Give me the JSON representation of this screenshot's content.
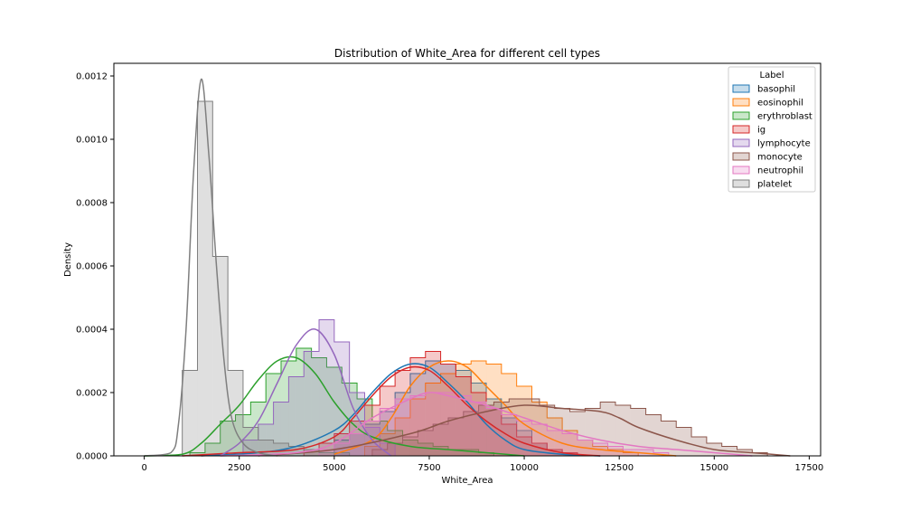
{
  "chart_data": {
    "type": "histogram",
    "title": "Distribution of White_Area for different cell types",
    "xlabel": "White_Area",
    "ylabel": "Density",
    "xlim": [
      -800,
      17800
    ],
    "ylim": [
      0,
      0.00124
    ],
    "x_ticks": [
      0,
      2500,
      5000,
      7500,
      10000,
      12500,
      15000,
      17500
    ],
    "x_tick_labels": [
      "0",
      "2500",
      "5000",
      "7500",
      "10000",
      "12500",
      "15000",
      "17500"
    ],
    "y_ticks": [
      0,
      0.0002,
      0.0004,
      0.0006,
      0.0008,
      0.001,
      0.0012
    ],
    "y_tick_labels": [
      "0.0000",
      "0.0002",
      "0.0004",
      "0.0006",
      "0.0008",
      "0.0010",
      "0.0012"
    ],
    "legend": {
      "title": "Label",
      "location": "upper right"
    },
    "bin_width": 400,
    "series": [
      {
        "name": "basophil",
        "color": "#1f77b4",
        "bins_start": 5000,
        "bin_values": [
          5e-05,
          7e-05,
          0.0001,
          0.00014,
          0.0002,
          0.00026,
          0.0003,
          0.00029,
          0.00027,
          0.00023,
          0.00018,
          0.00012,
          8e-05,
          4e-05,
          2e-05,
          1e-05
        ],
        "kde_x": [
          1500,
          3000,
          4000,
          5000,
          5500,
          6000,
          6500,
          7000,
          7500,
          8000,
          8500,
          9000,
          9500,
          10000,
          11000,
          12000
        ],
        "kde_y": [
          0,
          1e-05,
          3e-05,
          8e-05,
          0.00013,
          0.0002,
          0.00026,
          0.00029,
          0.00028,
          0.00023,
          0.00017,
          0.0001,
          5e-05,
          2e-05,
          5e-06,
          0
        ]
      },
      {
        "name": "eosinophil",
        "color": "#ff7f0e",
        "bins_start": 5800,
        "bin_values": [
          3e-05,
          7e-05,
          0.00012,
          0.00018,
          0.00023,
          0.00026,
          0.00029,
          0.0003,
          0.00029,
          0.00026,
          0.00022,
          0.00017,
          0.00012,
          8e-05,
          5e-05,
          3e-05,
          2e-05,
          1e-05
        ],
        "kde_x": [
          5000,
          6000,
          6500,
          7000,
          7500,
          8000,
          8500,
          9000,
          9500,
          10000,
          11000,
          12000,
          13000,
          14000
        ],
        "kde_y": [
          5e-06,
          5e-05,
          0.00012,
          0.00022,
          0.00028,
          0.0003,
          0.00028,
          0.00022,
          0.00016,
          0.0001,
          4e-05,
          2e-05,
          1e-05,
          0
        ]
      },
      {
        "name": "erythroblast",
        "color": "#2ca02c",
        "bins_start": 1200,
        "bin_values": [
          1e-05,
          4e-05,
          0.00011,
          0.00013,
          0.00017,
          0.00026,
          0.0003,
          0.00034,
          0.00031,
          0.00028,
          0.00023,
          0.00018,
          0.00011,
          8e-05,
          5e-05,
          4e-05,
          3e-05,
          2e-05,
          2e-05,
          1e-05
        ],
        "kde_x": [
          0,
          1000,
          1500,
          2000,
          2500,
          3000,
          3500,
          4000,
          4500,
          5000,
          5500,
          6000,
          7000,
          8000,
          9000,
          10000
        ],
        "kde_y": [
          0,
          5e-06,
          4e-05,
          0.0001,
          0.00016,
          0.00024,
          0.0003,
          0.00031,
          0.00026,
          0.00017,
          0.0001,
          6e-05,
          3e-05,
          2e-05,
          1e-05,
          0
        ]
      },
      {
        "name": "ig",
        "color": "#d62728",
        "bins_start": 4200,
        "bin_values": [
          2e-05,
          4e-05,
          7e-05,
          0.00011,
          0.00016,
          0.00022,
          0.00027,
          0.00031,
          0.00033,
          0.00029,
          0.00025,
          0.0002,
          0.00015,
          0.0001,
          6e-05,
          4e-05,
          2e-05,
          1e-05
        ],
        "kde_x": [
          1000,
          2500,
          4000,
          5000,
          5500,
          6000,
          6500,
          7000,
          7500,
          8000,
          8500,
          9000,
          9500,
          10000,
          11000,
          12000
        ],
        "kde_y": [
          0,
          1e-05,
          2e-05,
          6e-05,
          0.00012,
          0.00019,
          0.00025,
          0.00028,
          0.00027,
          0.00022,
          0.00016,
          0.00011,
          7e-05,
          4e-05,
          1e-05,
          0
        ]
      },
      {
        "name": "lymphocyte",
        "color": "#9467bd",
        "bins_start": 2600,
        "bin_values": [
          5e-05,
          0.0001,
          0.00017,
          0.00025,
          0.00033,
          0.00043,
          0.00036,
          0.0002,
          9e-05,
          4e-05
        ],
        "kde_x": [
          2000,
          2500,
          3000,
          3500,
          4000,
          4500,
          5000,
          5500,
          6000,
          6500
        ],
        "kde_y": [
          0,
          4e-05,
          0.00011,
          0.00023,
          0.00035,
          0.0004,
          0.00032,
          0.00015,
          5e-05,
          0
        ]
      },
      {
        "name": "monocyte",
        "color": "#8c564b",
        "bins_start": 6000,
        "bin_values": [
          2e-05,
          4e-05,
          6e-05,
          8e-05,
          0.0001,
          0.00012,
          0.00014,
          0.00016,
          0.00017,
          0.00018,
          0.00018,
          0.00016,
          0.00015,
          0.00014,
          0.00015,
          0.00017,
          0.00016,
          0.00015,
          0.00013,
          0.00011,
          9e-05,
          6e-05,
          4e-05,
          3e-05,
          2e-05,
          1e-05
        ],
        "kde_x": [
          3000,
          5000,
          7000,
          8000,
          9000,
          10000,
          11000,
          12000,
          12500,
          13000,
          14000,
          15000,
          16000,
          17000
        ],
        "kde_y": [
          0,
          2e-05,
          7e-05,
          0.00011,
          0.00014,
          0.00016,
          0.00015,
          0.00014,
          0.00012,
          9e-05,
          5e-05,
          2e-05,
          1e-05,
          0
        ]
      },
      {
        "name": "neutrophil",
        "color": "#e377c2",
        "bins_start": 4600,
        "bin_values": [
          2e-05,
          4e-05,
          7e-05,
          0.00011,
          0.00015,
          0.00018,
          0.00019,
          0.0002,
          0.0002,
          0.00019,
          0.00017,
          0.00015,
          0.00013,
          0.00011,
          0.0001,
          8e-05,
          7e-05,
          5e-05,
          4e-05,
          3e-05,
          2e-05,
          2e-05,
          1e-05
        ],
        "kde_x": [
          2000,
          4000,
          5000,
          6000,
          7000,
          7500,
          8000,
          9000,
          10000,
          11000,
          12000,
          13000,
          14000,
          15000,
          16000
        ],
        "kde_y": [
          0,
          1e-05,
          4e-05,
          0.00012,
          0.00018,
          0.0002,
          0.00019,
          0.00016,
          0.00012,
          8e-05,
          5e-05,
          3e-05,
          2e-05,
          1e-05,
          0
        ]
      },
      {
        "name": "platelet",
        "color": "#7f7f7f",
        "bins_start": 1000,
        "bin_values": [
          0.00027,
          0.00112,
          0.00063,
          0.00027,
          9e-05,
          5e-05,
          4e-05,
          3e-05,
          2e-05,
          1e-05,
          1e-05
        ],
        "kde_x": [
          0,
          700,
          900,
          1100,
          1300,
          1500,
          1700,
          1900,
          2100,
          2300,
          2600,
          3000,
          3500
        ],
        "kde_y": [
          0,
          1e-05,
          0.0001,
          0.0004,
          0.0009,
          0.00119,
          0.00095,
          0.0006,
          0.0003,
          0.00012,
          4e-05,
          1e-05,
          0
        ]
      }
    ]
  }
}
